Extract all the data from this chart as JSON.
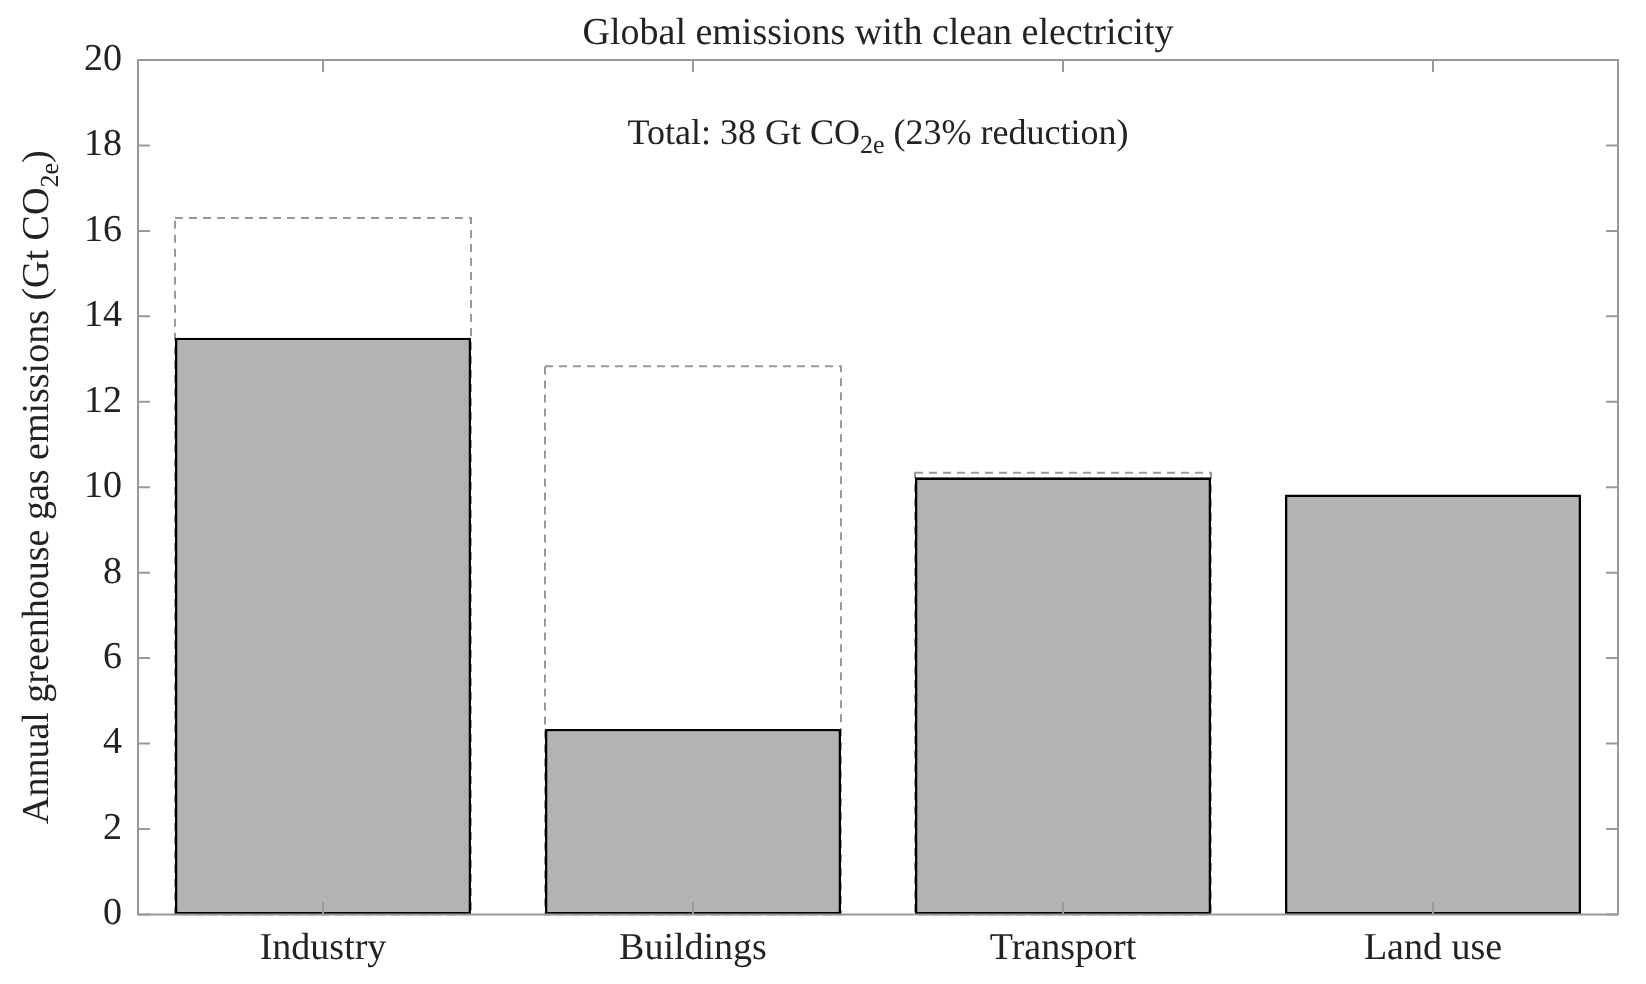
{
  "chart_data": {
    "type": "bar",
    "title": "Global emissions with clean electricity",
    "ylabel": "Annual greenhouse gas emissions (Gt CO$_{2e}$)",
    "annotations": [
      "Total: 38 Gt CO$_{2e}$ (23% reduction)"
    ],
    "categories": [
      "Industry",
      "Buildings",
      "Transport",
      "Land use"
    ],
    "series": [
      {
        "color": "#999999",
        "line_style": "dashed",
        "values": [
          16.3,
          12.83,
          10.34,
          null
        ]
      },
      {
        "color": "#b3b3b3",
        "values": [
          13.5,
          4.34,
          10.23,
          9.83
        ]
      }
    ],
    "ylim": [
      0,
      20
    ],
    "yticks": [
      0,
      2,
      4,
      6,
      8,
      10,
      12,
      14,
      16,
      18,
      20
    ],
    "grid": false,
    "legend": false
  }
}
